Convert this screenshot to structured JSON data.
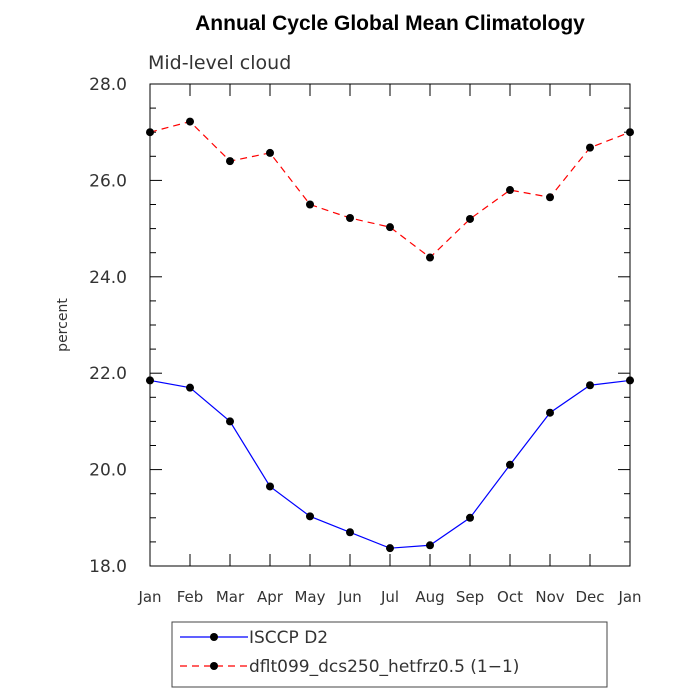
{
  "chart_data": {
    "type": "line",
    "title": "Annual Cycle Global Mean Climatology",
    "subtitle": "Mid-level cloud",
    "xlabel": "",
    "ylabel": "percent",
    "categories": [
      "Jan",
      "Feb",
      "Mar",
      "Apr",
      "May",
      "Jun",
      "Jul",
      "Aug",
      "Sep",
      "Oct",
      "Nov",
      "Dec",
      "Jan"
    ],
    "ylim": [
      18.0,
      28.0
    ],
    "yticks": [
      18.0,
      20.0,
      22.0,
      24.0,
      26.0,
      28.0
    ],
    "ytick_labels": [
      "18.0",
      "20.0",
      "22.0",
      "24.0",
      "26.0",
      "28.0"
    ],
    "series": [
      {
        "name": "ISCCP D2",
        "color": "#0000ff",
        "style": "solid",
        "values": [
          21.85,
          21.7,
          21.0,
          19.65,
          19.03,
          18.7,
          18.37,
          18.43,
          19.0,
          20.1,
          21.18,
          21.75,
          21.85
        ]
      },
      {
        "name": "dflt099_dcs250_hetfrz0.5 (1−1)",
        "color": "#ff0000",
        "style": "dashed",
        "values": [
          27.0,
          27.22,
          26.4,
          26.57,
          25.5,
          25.22,
          25.03,
          24.4,
          25.2,
          25.8,
          25.65,
          26.68,
          27.0
        ]
      }
    ],
    "legend": "bottom"
  }
}
